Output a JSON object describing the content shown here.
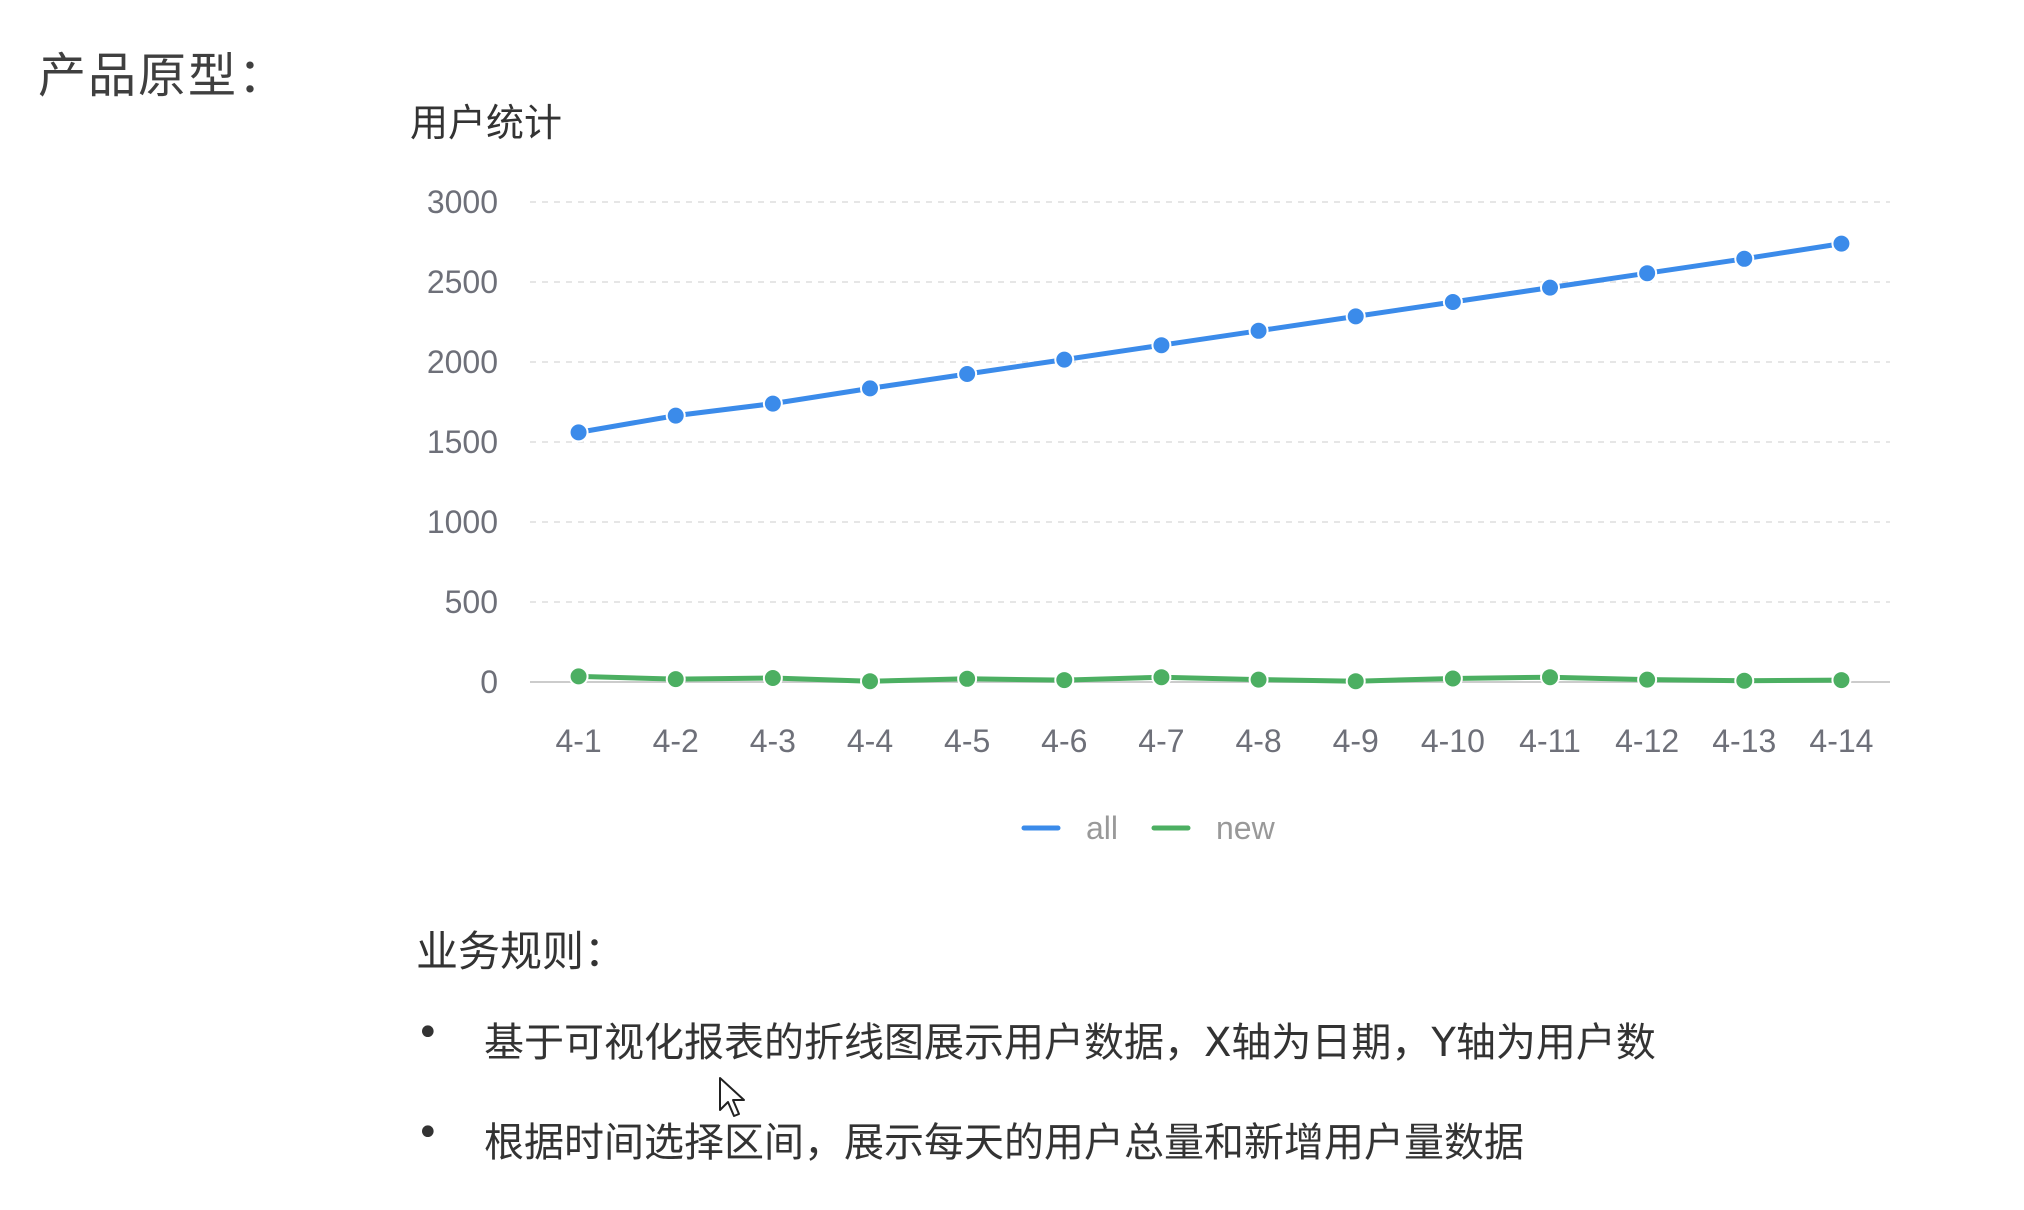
{
  "page_heading": "产品原型：",
  "rules": {
    "heading": "业务规则：",
    "items": [
      {
        "bullet": "•",
        "text": "基于可视化报表的折线图展示用户数据，X轴为日期，Y轴为用户数"
      },
      {
        "bullet": "•",
        "text": "根据时间选择区间，展示每天的用户总量和新增用户量数据"
      }
    ]
  },
  "chart_data": {
    "type": "line",
    "title": "用户统计",
    "xlabel": "",
    "ylabel": "",
    "ylim": [
      0,
      3000
    ],
    "yticks": [
      "0",
      "500",
      "1000",
      "1500",
      "2000",
      "2500",
      "3000"
    ],
    "categories": [
      "4-1",
      "4-2",
      "4-3",
      "4-4",
      "4-5",
      "4-6",
      "4-7",
      "4-8",
      "4-9",
      "4-10",
      "4-11",
      "4-12",
      "4-13",
      "4-14"
    ],
    "series": [
      {
        "name": "all",
        "color": "#3b8bea",
        "values": [
          1560,
          1665,
          1740,
          1835,
          1925,
          2015,
          2105,
          2195,
          2285,
          2375,
          2465,
          2555,
          2645,
          2740
        ]
      },
      {
        "name": "new",
        "color": "#4caf62",
        "values": [
          35,
          18,
          25,
          5,
          20,
          12,
          30,
          15,
          5,
          22,
          30,
          15,
          8,
          12
        ]
      }
    ],
    "grid": true,
    "legend": "bottom-center"
  }
}
